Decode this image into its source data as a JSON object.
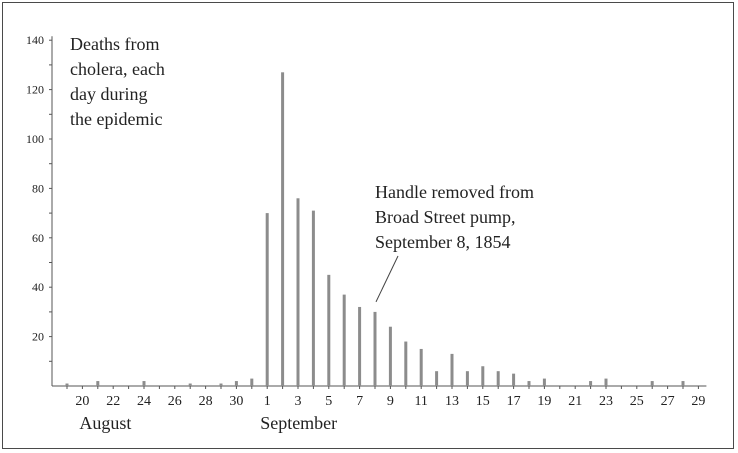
{
  "chart_data": {
    "type": "bar",
    "annotations": {
      "deaths": [
        "Deaths from",
        "cholera, each",
        "day during",
        "the epidemic"
      ],
      "handle": [
        "Handle removed from",
        "Broad Street pump,",
        "September 8, 1854"
      ]
    },
    "month_labels": [
      "August",
      "September"
    ],
    "yticks": [
      20,
      40,
      60,
      80,
      100,
      120,
      140
    ],
    "ylim": [
      0,
      140
    ],
    "x_tick_labels": [
      "20",
      "22",
      "24",
      "26",
      "28",
      "30",
      "1",
      "3",
      "5",
      "7",
      "9",
      "11",
      "13",
      "15",
      "17",
      "19",
      "21",
      "23",
      "25",
      "27",
      "29"
    ],
    "days": [
      {
        "label": "19 Aug",
        "value": 1
      },
      {
        "label": "20 Aug",
        "value": 0
      },
      {
        "label": "21 Aug",
        "value": 2
      },
      {
        "label": "22 Aug",
        "value": 0
      },
      {
        "label": "23 Aug",
        "value": 0
      },
      {
        "label": "24 Aug",
        "value": 2
      },
      {
        "label": "25 Aug",
        "value": 0
      },
      {
        "label": "26 Aug",
        "value": 0
      },
      {
        "label": "27 Aug",
        "value": 1
      },
      {
        "label": "28 Aug",
        "value": 0
      },
      {
        "label": "29 Aug",
        "value": 1
      },
      {
        "label": "30 Aug",
        "value": 2
      },
      {
        "label": "31 Aug",
        "value": 3
      },
      {
        "label": "1 Sep",
        "value": 70
      },
      {
        "label": "2 Sep",
        "value": 127
      },
      {
        "label": "3 Sep",
        "value": 76
      },
      {
        "label": "4 Sep",
        "value": 71
      },
      {
        "label": "5 Sep",
        "value": 45
      },
      {
        "label": "6 Sep",
        "value": 37
      },
      {
        "label": "7 Sep",
        "value": 32
      },
      {
        "label": "8 Sep",
        "value": 30
      },
      {
        "label": "9 Sep",
        "value": 24
      },
      {
        "label": "10 Sep",
        "value": 18
      },
      {
        "label": "11 Sep",
        "value": 15
      },
      {
        "label": "12 Sep",
        "value": 6
      },
      {
        "label": "13 Sep",
        "value": 13
      },
      {
        "label": "14 Sep",
        "value": 6
      },
      {
        "label": "15 Sep",
        "value": 8
      },
      {
        "label": "16 Sep",
        "value": 6
      },
      {
        "label": "17 Sep",
        "value": 5
      },
      {
        "label": "18 Sep",
        "value": 2
      },
      {
        "label": "19 Sep",
        "value": 3
      },
      {
        "label": "20 Sep",
        "value": 0
      },
      {
        "label": "21 Sep",
        "value": 0
      },
      {
        "label": "22 Sep",
        "value": 2
      },
      {
        "label": "23 Sep",
        "value": 3
      },
      {
        "label": "24 Sep",
        "value": 0
      },
      {
        "label": "25 Sep",
        "value": 0
      },
      {
        "label": "26 Sep",
        "value": 2
      },
      {
        "label": "27 Sep",
        "value": 0
      },
      {
        "label": "28 Sep",
        "value": 2
      },
      {
        "label": "29 Sep",
        "value": 0
      }
    ],
    "annotation_day": "8 Sep",
    "bar_color": "#8c8c8c",
    "axis_color": "#555555",
    "text_color": "#222222"
  }
}
